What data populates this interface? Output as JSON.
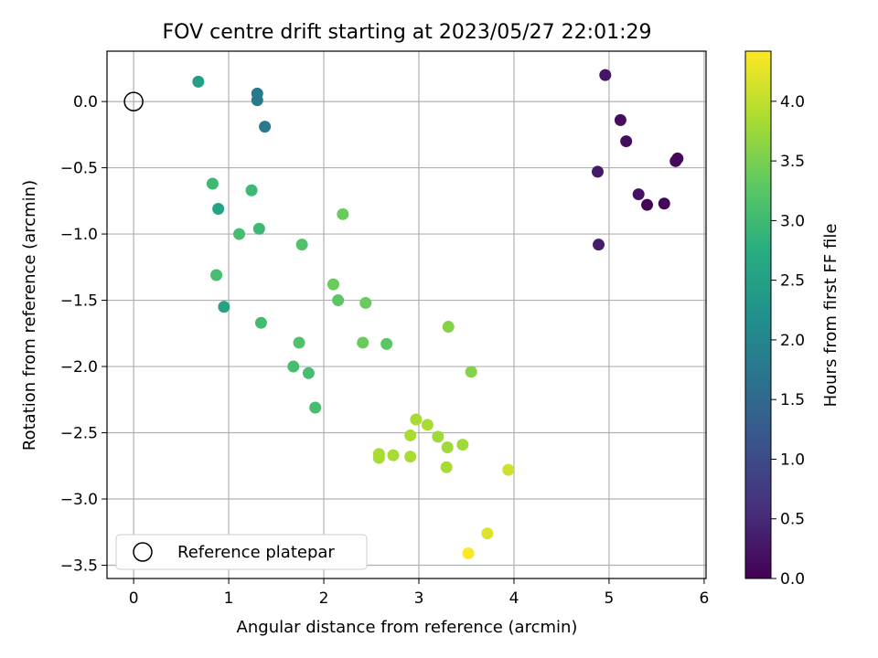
{
  "chart_data": {
    "type": "scatter",
    "title": "FOV centre drift starting at 2023/05/27 22:01:29",
    "xlabel": "Angular distance from reference (arcmin)",
    "ylabel": "Rotation from reference (arcmin)",
    "xlim": [
      -0.28,
      6.02
    ],
    "ylim": [
      -3.6,
      0.38
    ],
    "xticks": [
      0,
      1,
      2,
      3,
      4,
      5,
      6
    ],
    "xtick_labels": [
      "0",
      "1",
      "2",
      "3",
      "4",
      "5",
      "6"
    ],
    "yticks": [
      0.0,
      -0.5,
      -1.0,
      -1.5,
      -2.0,
      -2.5,
      -3.0,
      -3.5
    ],
    "ytick_labels": [
      "0.0",
      "−0.5",
      "−1.0",
      "−1.5",
      "−2.0",
      "−2.5",
      "−3.0",
      "−3.5"
    ],
    "grid": true,
    "colormap": "viridis",
    "colorbar": {
      "label": "Hours from first FF file",
      "range": [
        0.0,
        4.42
      ],
      "ticks": [
        0.0,
        0.5,
        1.0,
        1.5,
        2.0,
        2.5,
        3.0,
        3.5,
        4.0
      ],
      "tick_labels": [
        "0.0",
        "0.5",
        "1.0",
        "1.5",
        "2.0",
        "2.5",
        "3.0",
        "3.5",
        "4.0"
      ]
    },
    "reference": {
      "x": 0,
      "y": 0,
      "label": "Reference platepar"
    },
    "legend_position": "lower-left",
    "points": [
      {
        "x": 4.96,
        "y": 0.2,
        "c": 0.25
      },
      {
        "x": 5.12,
        "y": -0.14,
        "c": 0.15
      },
      {
        "x": 5.18,
        "y": -0.3,
        "c": 0.15
      },
      {
        "x": 4.88,
        "y": -0.53,
        "c": 0.3
      },
      {
        "x": 5.72,
        "y": -0.43,
        "c": 0.1
      },
      {
        "x": 5.7,
        "y": -0.45,
        "c": 0.1
      },
      {
        "x": 5.31,
        "y": -0.7,
        "c": 0.2
      },
      {
        "x": 5.4,
        "y": -0.78,
        "c": 0.05
      },
      {
        "x": 5.58,
        "y": -0.77,
        "c": 0.05
      },
      {
        "x": 4.89,
        "y": -1.08,
        "c": 0.35
      },
      {
        "x": 1.3,
        "y": 0.06,
        "c": 1.8
      },
      {
        "x": 1.3,
        "y": 0.01,
        "c": 1.8
      },
      {
        "x": 1.38,
        "y": -0.19,
        "c": 1.8
      },
      {
        "x": 0.68,
        "y": 0.15,
        "c": 2.5
      },
      {
        "x": 0.89,
        "y": -0.81,
        "c": 2.6
      },
      {
        "x": 0.95,
        "y": -1.55,
        "c": 2.6
      },
      {
        "x": 0.83,
        "y": -0.62,
        "c": 3.0
      },
      {
        "x": 1.24,
        "y": -0.67,
        "c": 3.0
      },
      {
        "x": 1.32,
        "y": -0.96,
        "c": 3.0
      },
      {
        "x": 1.11,
        "y": -1.0,
        "c": 3.1
      },
      {
        "x": 0.87,
        "y": -1.31,
        "c": 3.1
      },
      {
        "x": 1.34,
        "y": -1.67,
        "c": 3.05
      },
      {
        "x": 1.77,
        "y": -1.08,
        "c": 3.2
      },
      {
        "x": 1.74,
        "y": -1.82,
        "c": 3.2
      },
      {
        "x": 1.68,
        "y": -2.0,
        "c": 3.1
      },
      {
        "x": 1.84,
        "y": -2.05,
        "c": 3.1
      },
      {
        "x": 1.91,
        "y": -2.31,
        "c": 3.1
      },
      {
        "x": 2.2,
        "y": -0.85,
        "c": 3.4
      },
      {
        "x": 2.1,
        "y": -1.38,
        "c": 3.4
      },
      {
        "x": 2.15,
        "y": -1.5,
        "c": 3.3
      },
      {
        "x": 2.44,
        "y": -1.52,
        "c": 3.4
      },
      {
        "x": 2.41,
        "y": -1.82,
        "c": 3.4
      },
      {
        "x": 2.66,
        "y": -1.83,
        "c": 3.3
      },
      {
        "x": 3.31,
        "y": -1.7,
        "c": 3.6
      },
      {
        "x": 3.55,
        "y": -2.04,
        "c": 3.6
      },
      {
        "x": 2.97,
        "y": -2.4,
        "c": 3.85
      },
      {
        "x": 3.09,
        "y": -2.44,
        "c": 3.85
      },
      {
        "x": 2.91,
        "y": -2.52,
        "c": 3.85
      },
      {
        "x": 3.2,
        "y": -2.53,
        "c": 3.8
      },
      {
        "x": 3.3,
        "y": -2.61,
        "c": 3.8
      },
      {
        "x": 3.46,
        "y": -2.59,
        "c": 3.8
      },
      {
        "x": 2.58,
        "y": -2.66,
        "c": 3.85
      },
      {
        "x": 2.58,
        "y": -2.69,
        "c": 3.85
      },
      {
        "x": 2.73,
        "y": -2.67,
        "c": 3.85
      },
      {
        "x": 2.91,
        "y": -2.68,
        "c": 3.85
      },
      {
        "x": 3.29,
        "y": -2.76,
        "c": 3.85
      },
      {
        "x": 3.94,
        "y": -2.78,
        "c": 4.1
      },
      {
        "x": 3.72,
        "y": -3.26,
        "c": 4.2
      },
      {
        "x": 3.52,
        "y": -3.41,
        "c": 4.4
      }
    ]
  }
}
